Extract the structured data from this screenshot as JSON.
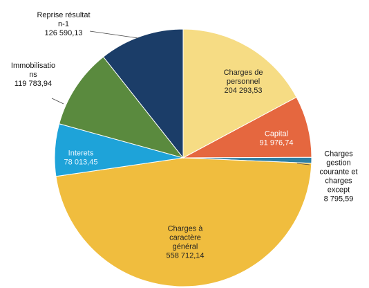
{
  "chart_data": {
    "type": "pie",
    "categories": [
      "Charges de personnel",
      "Capital",
      "Charges gestion courante et charges except",
      "Charges à caractère général",
      "Interets",
      "Immobilisations",
      "Reprise résultat n-1"
    ],
    "values": [
      204293.53,
      91976.74,
      8795.59,
      558712.14,
      78013.45,
      119783.94,
      126590.13
    ],
    "value_labels": [
      "204 293,53",
      "91 976,74",
      "8 795,59",
      "558 712,14",
      "78 013,45",
      "119 783,94",
      "126 590,13"
    ],
    "colors": [
      "#f6dc84",
      "#e5673f",
      "#2f7fa3",
      "#f0bd3e",
      "#1ea3d9",
      "#5a8a3e",
      "#1b3d68"
    ]
  }
}
